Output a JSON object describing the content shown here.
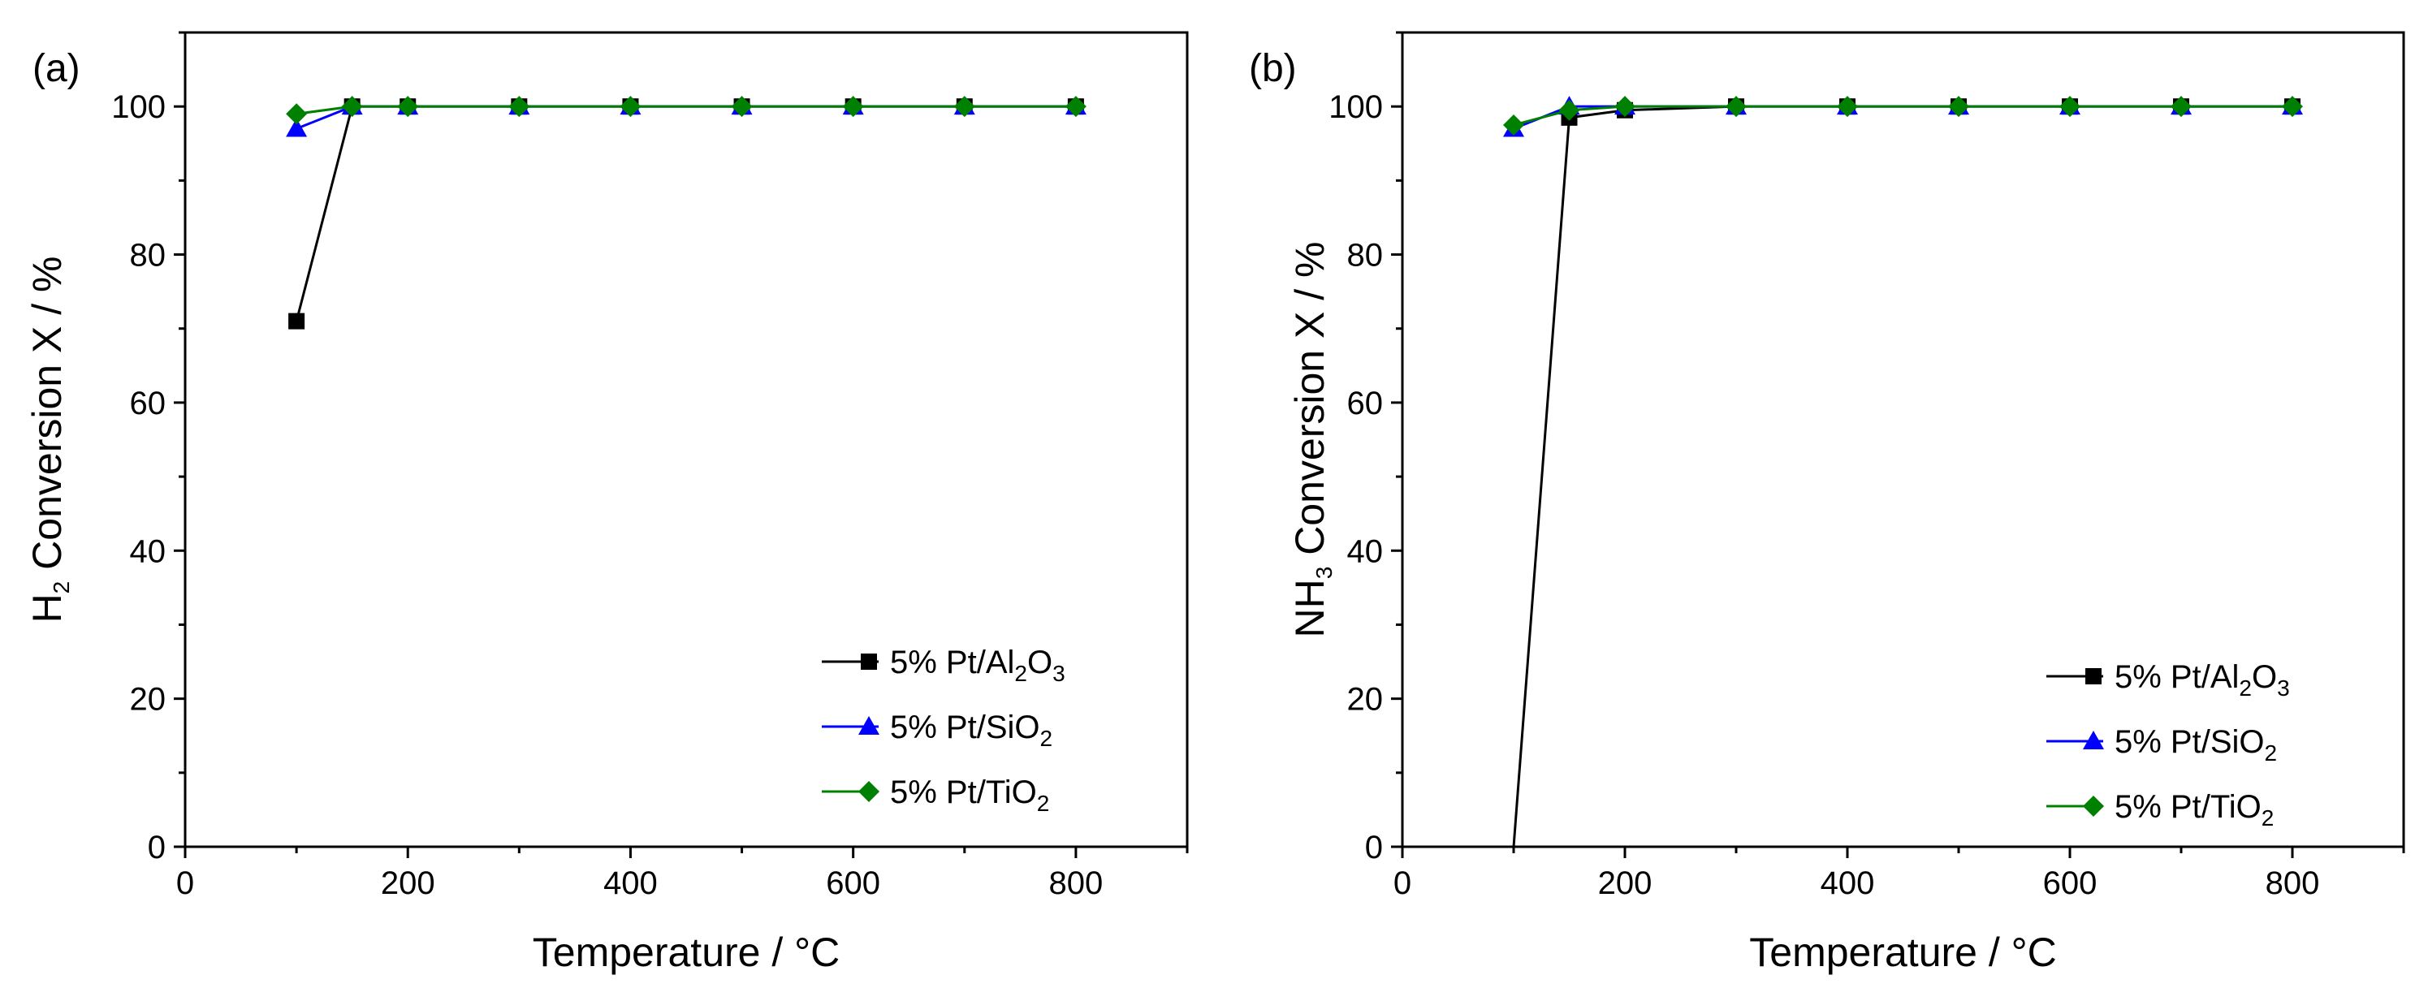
{
  "chart_data": [
    {
      "type": "line",
      "panel_label": "(a)",
      "ylabel_parts": [
        "H",
        "2",
        " Conversion X / %"
      ],
      "xlabel": "Temperature / °C",
      "xlim": [
        0,
        900
      ],
      "ylim": [
        0,
        110
      ],
      "xticks": [
        0,
        200,
        400,
        600,
        800
      ],
      "xtick_labels": [
        "0",
        "200",
        "400",
        "600",
        "800"
      ],
      "yticks": [
        0,
        20,
        40,
        60,
        80,
        100
      ],
      "ytick_labels": [
        "0",
        "20",
        "40",
        "60",
        "80",
        "100"
      ],
      "legend_position": "bottom-right",
      "series": [
        {
          "name_parts": [
            "5% Pt/Al",
            "2",
            "O",
            "3"
          ],
          "color": "#000000",
          "marker": "square",
          "x": [
            100,
            150,
            200,
            300,
            400,
            500,
            600,
            700,
            800
          ],
          "y": [
            71,
            100,
            100,
            100,
            100,
            100,
            100,
            100,
            100
          ]
        },
        {
          "name_parts": [
            "5% Pt/SiO",
            "2"
          ],
          "color": "#0000ff",
          "marker": "triangle",
          "x": [
            100,
            150,
            200,
            300,
            400,
            500,
            600,
            700,
            800
          ],
          "y": [
            97,
            100,
            100,
            100,
            100,
            100,
            100,
            100,
            100
          ]
        },
        {
          "name_parts": [
            "5% Pt/TiO",
            "2"
          ],
          "color": "#008000",
          "marker": "diamond",
          "x": [
            100,
            150,
            200,
            300,
            400,
            500,
            600,
            700,
            800
          ],
          "y": [
            99,
            100,
            100,
            100,
            100,
            100,
            100,
            100,
            100
          ]
        }
      ]
    },
    {
      "type": "line",
      "panel_label": "(b)",
      "ylabel_parts": [
        "NH",
        "3",
        " Conversion X / %"
      ],
      "xlabel": "Temperature / °C",
      "xlim": [
        0,
        900
      ],
      "ylim": [
        0,
        110
      ],
      "xticks": [
        0,
        200,
        400,
        600,
        800
      ],
      "xtick_labels": [
        "0",
        "200",
        "400",
        "600",
        "800"
      ],
      "yticks": [
        0,
        20,
        40,
        60,
        80,
        100
      ],
      "ytick_labels": [
        "0",
        "20",
        "40",
        "60",
        "80",
        "100"
      ],
      "legend_position": "bottom-right",
      "series": [
        {
          "name_parts": [
            "5% Pt/Al",
            "2",
            "O",
            "3"
          ],
          "color": "#000000",
          "marker": "square",
          "x": [
            100,
            150,
            200,
            300,
            400,
            500,
            600,
            700,
            800
          ],
          "y": [
            0,
            98.5,
            99.5,
            100,
            100,
            100,
            100,
            100,
            100
          ]
        },
        {
          "name_parts": [
            "5% Pt/SiO",
            "2"
          ],
          "color": "#0000ff",
          "marker": "triangle",
          "x": [
            100,
            150,
            200,
            300,
            400,
            500,
            600,
            700,
            800
          ],
          "y": [
            97,
            100,
            100,
            100,
            100,
            100,
            100,
            100,
            100
          ]
        },
        {
          "name_parts": [
            "5% Pt/TiO",
            "2"
          ],
          "color": "#008000",
          "marker": "diamond",
          "x": [
            100,
            150,
            200,
            300,
            400,
            500,
            600,
            700,
            800
          ],
          "y": [
            97.5,
            99.5,
            100,
            100,
            100,
            100,
            100,
            100,
            100
          ]
        }
      ]
    }
  ]
}
